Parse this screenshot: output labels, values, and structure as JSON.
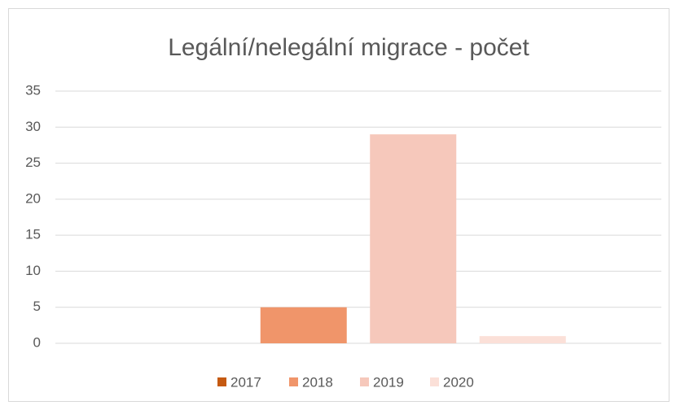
{
  "chart_data": {
    "type": "bar",
    "title": "Legální/nelegální migrace - počet",
    "categories": [
      null
    ],
    "series": [
      {
        "name": "2017",
        "color": "#c55a11",
        "values": [
          0
        ]
      },
      {
        "name": "2018",
        "color": "#f0956a",
        "values": [
          5
        ]
      },
      {
        "name": "2019",
        "color": "#f6c8bb",
        "values": [
          29
        ]
      },
      {
        "name": "2020",
        "color": "#fbe0d8",
        "values": [
          1
        ]
      }
    ],
    "ylim": [
      0,
      35
    ],
    "yticks": [
      0,
      5,
      10,
      15,
      20,
      25,
      30,
      35
    ],
    "grid": true,
    "legend": "bottom"
  }
}
